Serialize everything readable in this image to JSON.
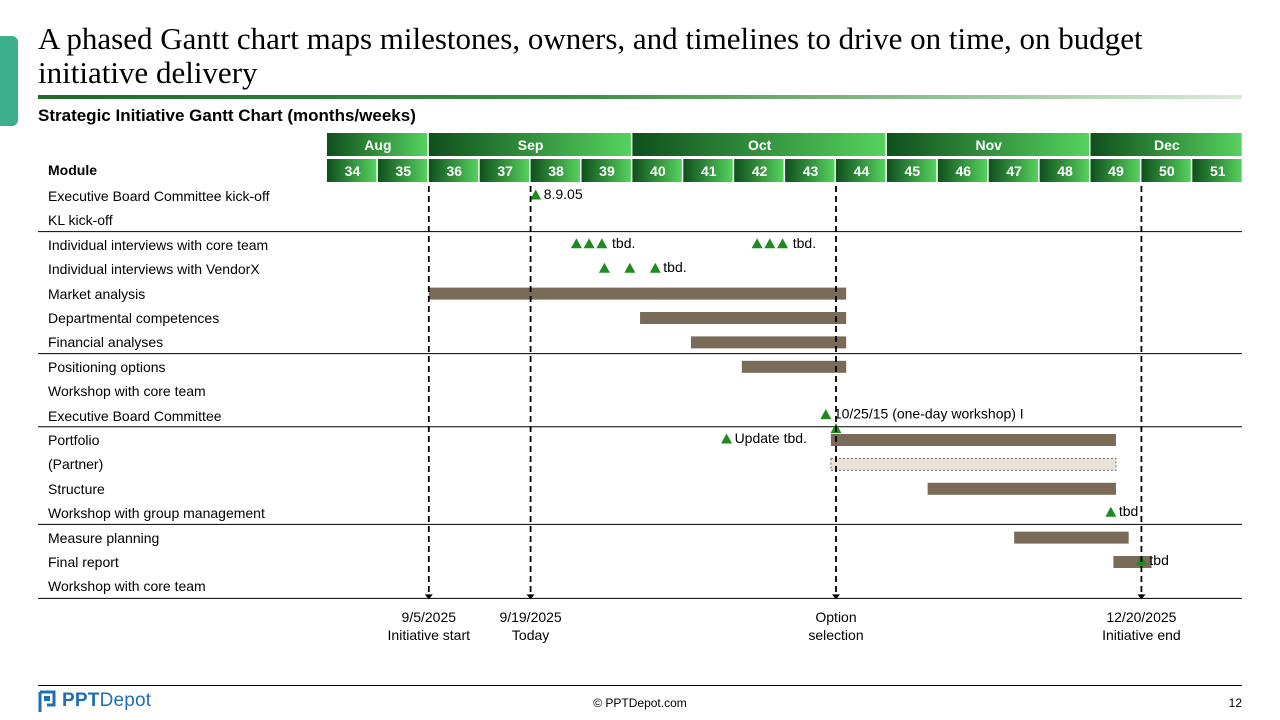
{
  "slide": {
    "title": "A phased Gantt chart maps milestones, owners, and timelines to drive on time, on budget initiative delivery",
    "subtitle": "Strategic Initiative Gantt Chart (months/weeks)",
    "module_header": "Module",
    "footer": {
      "logo_bold": "PPT",
      "logo_thin": "Depot",
      "copyright": "© PPTDepot.com",
      "page_number": "12"
    }
  },
  "colors": {
    "header_dark": "#0f4f1c",
    "header_light": "#56d25e",
    "bar": "#7a6b58",
    "bar_dashed_fill": "#e8e2da",
    "milestone": "#1f8a1f",
    "accent": "#3daf8d"
  },
  "chart_data": {
    "type": "gantt",
    "months": [
      {
        "name": "Aug",
        "weeks": [
          34,
          35
        ]
      },
      {
        "name": "Sep",
        "weeks": [
          36,
          37,
          38,
          39
        ]
      },
      {
        "name": "Oct",
        "weeks": [
          40,
          41,
          42,
          43,
          44
        ]
      },
      {
        "name": "Nov",
        "weeks": [
          45,
          46,
          47,
          48
        ]
      },
      {
        "name": "Dec",
        "weeks": [
          49,
          50,
          51
        ]
      }
    ],
    "rows": [
      {
        "label": "Executive Board Committee kick-off",
        "group": 1,
        "milestones": [
          38.1
        ],
        "milestone_label": "8.9.05"
      },
      {
        "label": "KL kick-off",
        "group": 1
      },
      {
        "label": "Individual interviews with core team",
        "group": 2,
        "milestones": [
          38.9,
          39.15,
          39.4,
          42.45,
          42.7,
          42.95
        ],
        "milestone_labels": [
          {
            "text": "tbd.",
            "week": 39.6
          },
          {
            "text": "tbd.",
            "week": 43.15
          }
        ]
      },
      {
        "label": "Individual interviews with VendorX",
        "group": 2,
        "milestones": [
          39.45,
          39.95,
          40.45
        ],
        "milestone_label": "tbd."
      },
      {
        "label": "Market analysis",
        "group": 2,
        "bar": [
          36.0,
          44.2
        ]
      },
      {
        "label": "Departmental competences",
        "group": 2,
        "bar": [
          40.15,
          44.2
        ]
      },
      {
        "label": "Financial analyses",
        "group": 2,
        "bar": [
          41.15,
          44.2
        ]
      },
      {
        "label": "Positioning options",
        "group": 3,
        "bar": [
          42.15,
          44.2
        ]
      },
      {
        "label": "Workshop with core team",
        "group": 3
      },
      {
        "label": "Executive Board Committee",
        "group": 3,
        "milestones": [
          43.8
        ],
        "milestone_label": "10/25/15 (one-day workshop) I",
        "extra_milestone": 44.0
      },
      {
        "label": "Portfolio",
        "group": 4,
        "milestones": [
          41.85
        ],
        "milestone_label": "Update tbd.",
        "bar": [
          43.9,
          49.5
        ]
      },
      {
        "label": "(Partner)",
        "group": 4,
        "bar": [
          43.9,
          49.5
        ],
        "bar_style": "dashed"
      },
      {
        "label": "Structure",
        "group": 4,
        "bar": [
          45.8,
          49.5
        ]
      },
      {
        "label": "Workshop with group management",
        "group": 4,
        "milestones": [
          49.4
        ],
        "milestone_label": "tbd"
      },
      {
        "label": "Measure planning",
        "group": 5,
        "bar": [
          47.5,
          49.75
        ]
      },
      {
        "label": "Final report",
        "group": 5,
        "bar": [
          49.45,
          50.2
        ],
        "milestones": [
          50.0
        ],
        "milestone_label": "tbd"
      },
      {
        "label": "Workshop with core team",
        "group": 5
      }
    ],
    "markers": [
      {
        "week": 36.0,
        "date": "9/5/2025",
        "label": "Initiative start"
      },
      {
        "week": 38.0,
        "date": "9/19/2025",
        "label": "Today"
      },
      {
        "week": 44.0,
        "date": "Option",
        "label": "selection"
      },
      {
        "week": 50.0,
        "date": "12/20/2025",
        "label": "Initiative end"
      }
    ]
  }
}
